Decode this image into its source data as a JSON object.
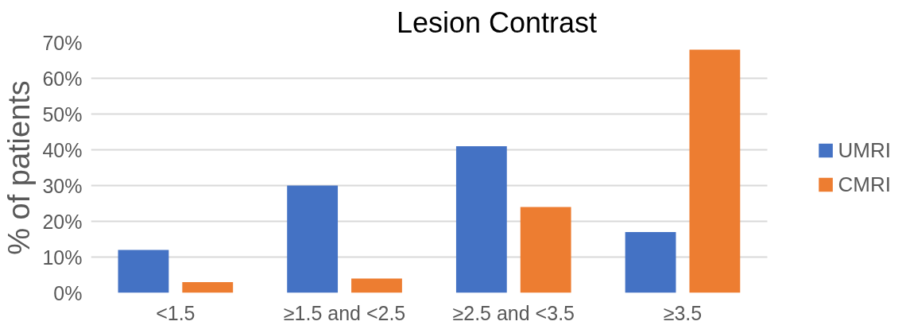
{
  "chart_data": {
    "type": "bar",
    "title": "Lesion Contrast",
    "ylabel": "% of patients",
    "categories": [
      "<1.5",
      "≥1.5 and <2.5",
      "≥2.5 and <3.5",
      "≥3.5"
    ],
    "series": [
      {
        "name": "UMRI",
        "color": "#4472c4",
        "values": [
          12,
          30,
          41,
          17
        ]
      },
      {
        "name": "CMRI",
        "color": "#ed7d31",
        "values": [
          3,
          4,
          24,
          68
        ]
      }
    ],
    "ylim": [
      0,
      70
    ],
    "yticks": [
      {
        "value": 0,
        "label": "0%"
      },
      {
        "value": 10,
        "label": "10%"
      },
      {
        "value": 20,
        "label": "20%"
      },
      {
        "value": 30,
        "label": "30%"
      },
      {
        "value": 40,
        "label": "40%"
      },
      {
        "value": 50,
        "label": "50%"
      },
      {
        "value": 60,
        "label": "60%"
      },
      {
        "value": 70,
        "label": "70%"
      }
    ],
    "grid": "y",
    "legend": "right"
  }
}
